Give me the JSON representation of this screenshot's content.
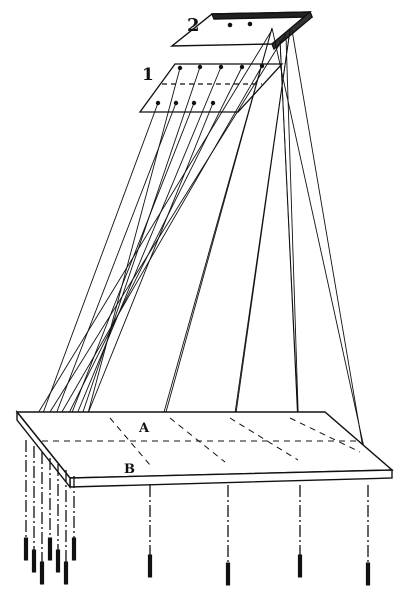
{
  "labels": {
    "board_2": "2",
    "board_1": "1",
    "point_a": "A",
    "point_b": "B"
  },
  "colors": {
    "ink": "#111111",
    "paper": "#ffffff"
  }
}
